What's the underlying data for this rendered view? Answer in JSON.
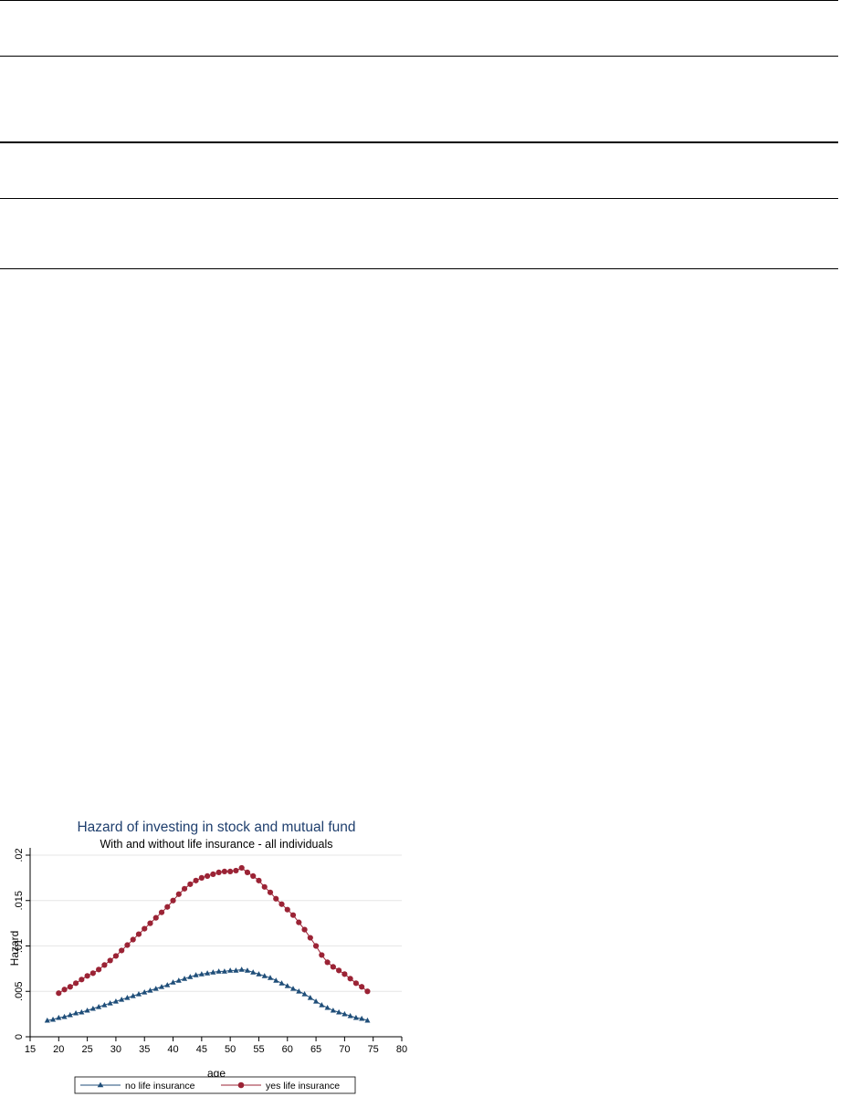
{
  "chart_data": {
    "type": "line",
    "title": "Hazard of investing in stock and mutual fund",
    "subtitle": "With and without life insurance - all individuals",
    "xlabel": "age",
    "ylabel": "Hazard",
    "xlim": [
      15,
      80
    ],
    "ylim": [
      0,
      0.02
    ],
    "xticks": [
      "15",
      "20",
      "25",
      "30",
      "35",
      "40",
      "45",
      "50",
      "55",
      "60",
      "65",
      "70",
      "75",
      "80"
    ],
    "yticks": [
      "0",
      ".005",
      ".01",
      ".015",
      ".02"
    ],
    "grid": true,
    "legend_position": "bottom",
    "series": [
      {
        "name": "no life insurance",
        "color": "#1f4e79",
        "marker": "triangle",
        "x": [
          18,
          19,
          20,
          21,
          22,
          23,
          24,
          25,
          26,
          27,
          28,
          29,
          30,
          31,
          32,
          33,
          34,
          35,
          36,
          37,
          38,
          39,
          40,
          41,
          42,
          43,
          44,
          45,
          46,
          47,
          48,
          49,
          50,
          51,
          52,
          53,
          54,
          55,
          56,
          57,
          58,
          59,
          60,
          61,
          62,
          63,
          64,
          65,
          66,
          67,
          68,
          69,
          70,
          71,
          72,
          73,
          74
        ],
        "y": [
          0.0018,
          0.0019,
          0.0021,
          0.0022,
          0.0024,
          0.0026,
          0.0027,
          0.0029,
          0.0031,
          0.0033,
          0.0035,
          0.0037,
          0.0039,
          0.0041,
          0.0043,
          0.0045,
          0.0047,
          0.0049,
          0.0051,
          0.0053,
          0.0055,
          0.0057,
          0.006,
          0.0062,
          0.0064,
          0.0066,
          0.0068,
          0.0069,
          0.007,
          0.0071,
          0.0072,
          0.0072,
          0.0073,
          0.0073,
          0.0074,
          0.0073,
          0.0071,
          0.0069,
          0.0067,
          0.0065,
          0.0062,
          0.0059,
          0.0056,
          0.0053,
          0.005,
          0.0047,
          0.0043,
          0.0039,
          0.0035,
          0.0032,
          0.0029,
          0.0027,
          0.0025,
          0.0023,
          0.0021,
          0.002,
          0.0018
        ]
      },
      {
        "name": "yes life insurance",
        "color": "#9b2335",
        "marker": "circle",
        "x": [
          20,
          21,
          22,
          23,
          24,
          25,
          26,
          27,
          28,
          29,
          30,
          31,
          32,
          33,
          34,
          35,
          36,
          37,
          38,
          39,
          40,
          41,
          42,
          43,
          44,
          45,
          46,
          47,
          48,
          49,
          50,
          51,
          52,
          53,
          54,
          55,
          56,
          57,
          58,
          59,
          60,
          61,
          62,
          63,
          64,
          65,
          66,
          67,
          68,
          69,
          70,
          71,
          72,
          73,
          74
        ],
        "y": [
          0.0048,
          0.0052,
          0.0055,
          0.0059,
          0.0063,
          0.0067,
          0.007,
          0.0074,
          0.0079,
          0.0084,
          0.0089,
          0.0095,
          0.0101,
          0.0107,
          0.0113,
          0.0119,
          0.0125,
          0.0131,
          0.0137,
          0.0143,
          0.015,
          0.0157,
          0.0163,
          0.0168,
          0.0172,
          0.0175,
          0.0177,
          0.0179,
          0.0181,
          0.0182,
          0.0182,
          0.0183,
          0.0186,
          0.0181,
          0.0177,
          0.0172,
          0.0165,
          0.0159,
          0.0152,
          0.0146,
          0.014,
          0.0134,
          0.0126,
          0.0118,
          0.0109,
          0.01,
          0.009,
          0.0082,
          0.0077,
          0.0073,
          0.0069,
          0.0064,
          0.0059,
          0.0055,
          0.005
        ]
      }
    ]
  }
}
